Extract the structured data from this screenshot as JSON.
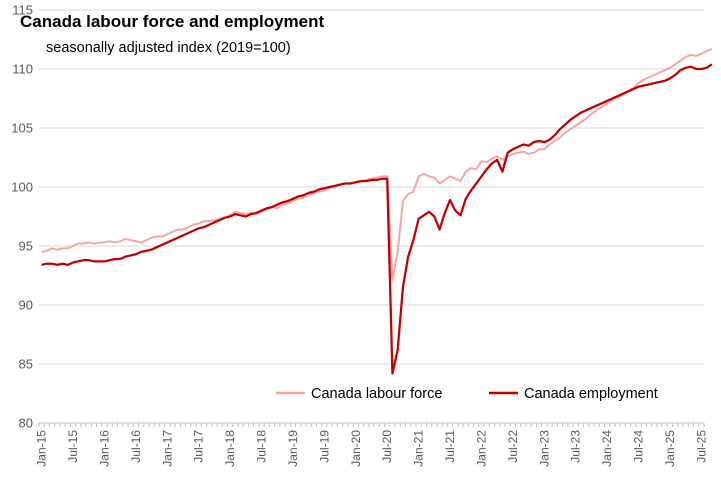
{
  "chart_data": {
    "type": "line",
    "title": "Canada labour force and employment",
    "subtitle": "seasonally adjusted index (2019=100)",
    "xlabel": "",
    "ylabel": "",
    "ylim": [
      80,
      115
    ],
    "yticks": [
      80,
      85,
      90,
      95,
      100,
      105,
      110,
      115
    ],
    "grid": "horizontal",
    "legend_position": "bottom-right",
    "x_tick_labels": [
      "Jan-15",
      "Jul-15",
      "Jan-16",
      "Jul-16",
      "Jan-17",
      "Jul-17",
      "Jan-18",
      "Jul-18",
      "Jan-19",
      "Jul-19",
      "Jan-20",
      "Jul-20",
      "Jan-21",
      "Jul-21",
      "Jan-22",
      "Jul-22",
      "Jan-23",
      "Jul-23",
      "Jan-24",
      "Jul-24",
      "Jan-25",
      "Jul-25"
    ],
    "x_start": "2015-01",
    "series": [
      {
        "name": "Canada labour force",
        "color": "#f4a6a6",
        "values": [
          94.5,
          94.6,
          94.8,
          94.7,
          94.8,
          94.8,
          95.0,
          95.2,
          95.2,
          95.3,
          95.2,
          95.3,
          95.3,
          95.4,
          95.3,
          95.4,
          95.6,
          95.5,
          95.4,
          95.3,
          95.5,
          95.7,
          95.8,
          95.8,
          96.0,
          96.2,
          96.4,
          96.4,
          96.6,
          96.8,
          96.9,
          97.1,
          97.1,
          97.2,
          97.3,
          97.4,
          97.6,
          97.9,
          97.8,
          97.7,
          97.8,
          97.7,
          97.9,
          98.1,
          98.3,
          98.2,
          98.5,
          98.6,
          98.8,
          99.0,
          99.1,
          99.3,
          99.5,
          99.6,
          99.7,
          99.9,
          100.0,
          100.2,
          100.3,
          100.3,
          100.4,
          100.5,
          100.6,
          100.7,
          100.8,
          100.9,
          100.9,
          92.1,
          94.5,
          98.8,
          99.4,
          99.6,
          100.9,
          101.1,
          100.9,
          100.8,
          100.3,
          100.6,
          100.9,
          100.7,
          100.5,
          101.3,
          101.6,
          101.5,
          102.2,
          102.1,
          102.4,
          102.6,
          102.3,
          102.6,
          102.8,
          102.9,
          103.0,
          102.8,
          102.9,
          103.2,
          103.2,
          103.6,
          103.9,
          104.2,
          104.6,
          104.9,
          105.2,
          105.5,
          105.8,
          106.2,
          106.5,
          106.8,
          107.1,
          107.4,
          107.6,
          107.8,
          108.1,
          108.4,
          108.8,
          109.1,
          109.3,
          109.5,
          109.7,
          109.9,
          110.1,
          110.4,
          110.7,
          111.0,
          111.2,
          111.1,
          111.3,
          111.5,
          111.7
        ]
      },
      {
        "name": "Canada employment",
        "color": "#c00000",
        "values": [
          93.4,
          93.5,
          93.5,
          93.4,
          93.5,
          93.4,
          93.6,
          93.7,
          93.8,
          93.8,
          93.7,
          93.7,
          93.7,
          93.8,
          93.9,
          93.9,
          94.1,
          94.2,
          94.3,
          94.5,
          94.6,
          94.7,
          94.9,
          95.1,
          95.3,
          95.5,
          95.7,
          95.9,
          96.1,
          96.3,
          96.5,
          96.6,
          96.8,
          97.0,
          97.2,
          97.4,
          97.5,
          97.7,
          97.6,
          97.5,
          97.7,
          97.8,
          98.0,
          98.2,
          98.3,
          98.5,
          98.7,
          98.8,
          99.0,
          99.2,
          99.3,
          99.5,
          99.6,
          99.8,
          99.9,
          100.0,
          100.1,
          100.2,
          100.3,
          100.3,
          100.4,
          100.5,
          100.5,
          100.6,
          100.6,
          100.7,
          100.7,
          84.2,
          86.2,
          91.5,
          94.1,
          95.5,
          97.3,
          97.6,
          97.9,
          97.5,
          96.4,
          97.8,
          98.9,
          98.0,
          97.6,
          99.0,
          99.7,
          100.3,
          100.9,
          101.5,
          102.0,
          102.3,
          101.3,
          102.9,
          103.2,
          103.4,
          103.6,
          103.5,
          103.8,
          103.9,
          103.8,
          104.0,
          104.4,
          104.9,
          105.3,
          105.7,
          106.0,
          106.3,
          106.5,
          106.7,
          106.9,
          107.1,
          107.3,
          107.5,
          107.7,
          107.9,
          108.1,
          108.3,
          108.5,
          108.6,
          108.7,
          108.8,
          108.9,
          109.0,
          109.2,
          109.5,
          109.9,
          110.1,
          110.2,
          110.0,
          110.0,
          110.1,
          110.4
        ]
      }
    ]
  }
}
